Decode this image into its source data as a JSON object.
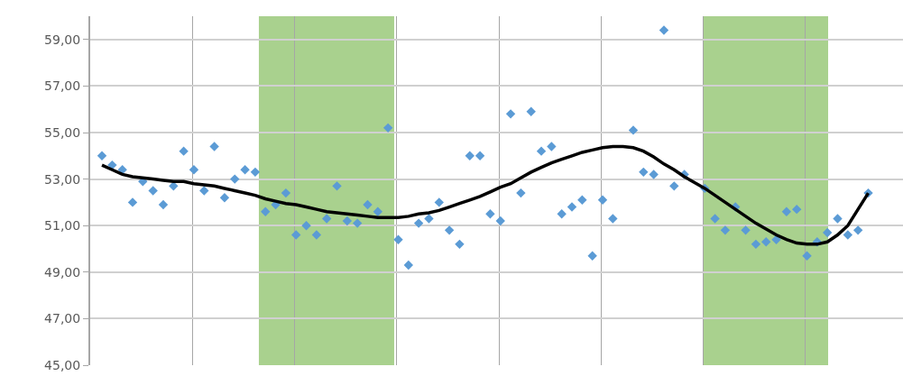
{
  "chart_data": {
    "type": "line",
    "grid": true,
    "tick_labels": "y",
    "categories": [
      null,
      null,
      null,
      null,
      null,
      null,
      null,
      null,
      null,
      null,
      null,
      null,
      null,
      null,
      null,
      null,
      null,
      null,
      null,
      null,
      null,
      null,
      null,
      null,
      null,
      null,
      null,
      null,
      null,
      null,
      null,
      null,
      null,
      null,
      null,
      null,
      null,
      null,
      null,
      null,
      null,
      null,
      null,
      null,
      null,
      null,
      null,
      null,
      null,
      null,
      null,
      null,
      null,
      null,
      null,
      null,
      null,
      null,
      null,
      null,
      null,
      null,
      null,
      null,
      null,
      null,
      null,
      null,
      null,
      null,
      null,
      null,
      null,
      null,
      null,
      null
    ],
    "ylim": [
      45,
      60
    ],
    "yticks": [
      {
        "value": 45,
        "label": "45,00"
      },
      {
        "value": 47,
        "label": "47,00"
      },
      {
        "value": 49,
        "label": "49,00"
      },
      {
        "value": 51,
        "label": "51,00"
      },
      {
        "value": 53,
        "label": "53,00"
      },
      {
        "value": 55,
        "label": "55,00"
      },
      {
        "value": 57,
        "label": "57,00"
      },
      {
        "value": 59,
        "label": "59,00"
      }
    ],
    "series": [
      {
        "type": "scatter",
        "marker": "diamond",
        "color": "#5b9bd5",
        "values": [
          54.0,
          53.6,
          53.4,
          52.0,
          52.9,
          52.5,
          51.9,
          52.7,
          54.2,
          53.4,
          52.5,
          54.4,
          52.2,
          53.0,
          53.4,
          53.3,
          51.6,
          51.9,
          52.4,
          50.6,
          51.0,
          50.6,
          51.3,
          52.7,
          51.2,
          51.1,
          51.9,
          51.6,
          55.2,
          50.4,
          49.3,
          51.1,
          51.3,
          52.0,
          50.8,
          50.2,
          54.0,
          54.0,
          51.5,
          51.2,
          55.8,
          52.4,
          55.9,
          54.2,
          54.4,
          51.5,
          51.8,
          52.1,
          49.7,
          52.1,
          51.3,
          null,
          55.1,
          53.3,
          53.2,
          59.4,
          52.7,
          53.2,
          null,
          52.6,
          51.3,
          50.8,
          51.8,
          50.8,
          50.2,
          50.3,
          50.4,
          51.6,
          51.7,
          49.7,
          50.3,
          50.7,
          51.3,
          50.6,
          50.8,
          52.4
        ]
      },
      {
        "color": "#000000",
        "values": [
          53.6,
          53.4,
          53.2,
          53.1,
          53.05,
          53.0,
          52.95,
          52.9,
          52.9,
          52.8,
          52.75,
          52.7,
          52.6,
          52.5,
          52.4,
          52.3,
          52.15,
          52.05,
          51.95,
          51.9,
          51.8,
          51.7,
          51.6,
          51.55,
          51.5,
          51.45,
          51.4,
          51.35,
          51.35,
          51.35,
          51.4,
          51.5,
          51.55,
          51.65,
          51.8,
          51.95,
          52.1,
          52.25,
          52.45,
          52.65,
          52.8,
          53.05,
          53.3,
          53.5,
          53.7,
          53.85,
          54.0,
          54.15,
          54.25,
          54.35,
          54.4,
          54.4,
          54.35,
          54.2,
          53.95,
          53.65,
          53.4,
          53.1,
          52.85,
          52.6,
          52.3,
          52.0,
          51.7,
          51.4,
          51.1,
          50.85,
          50.6,
          50.4,
          50.25,
          50.2,
          50.2,
          50.3,
          50.6,
          51.0,
          51.7,
          52.4
        ]
      }
    ]
  }
}
